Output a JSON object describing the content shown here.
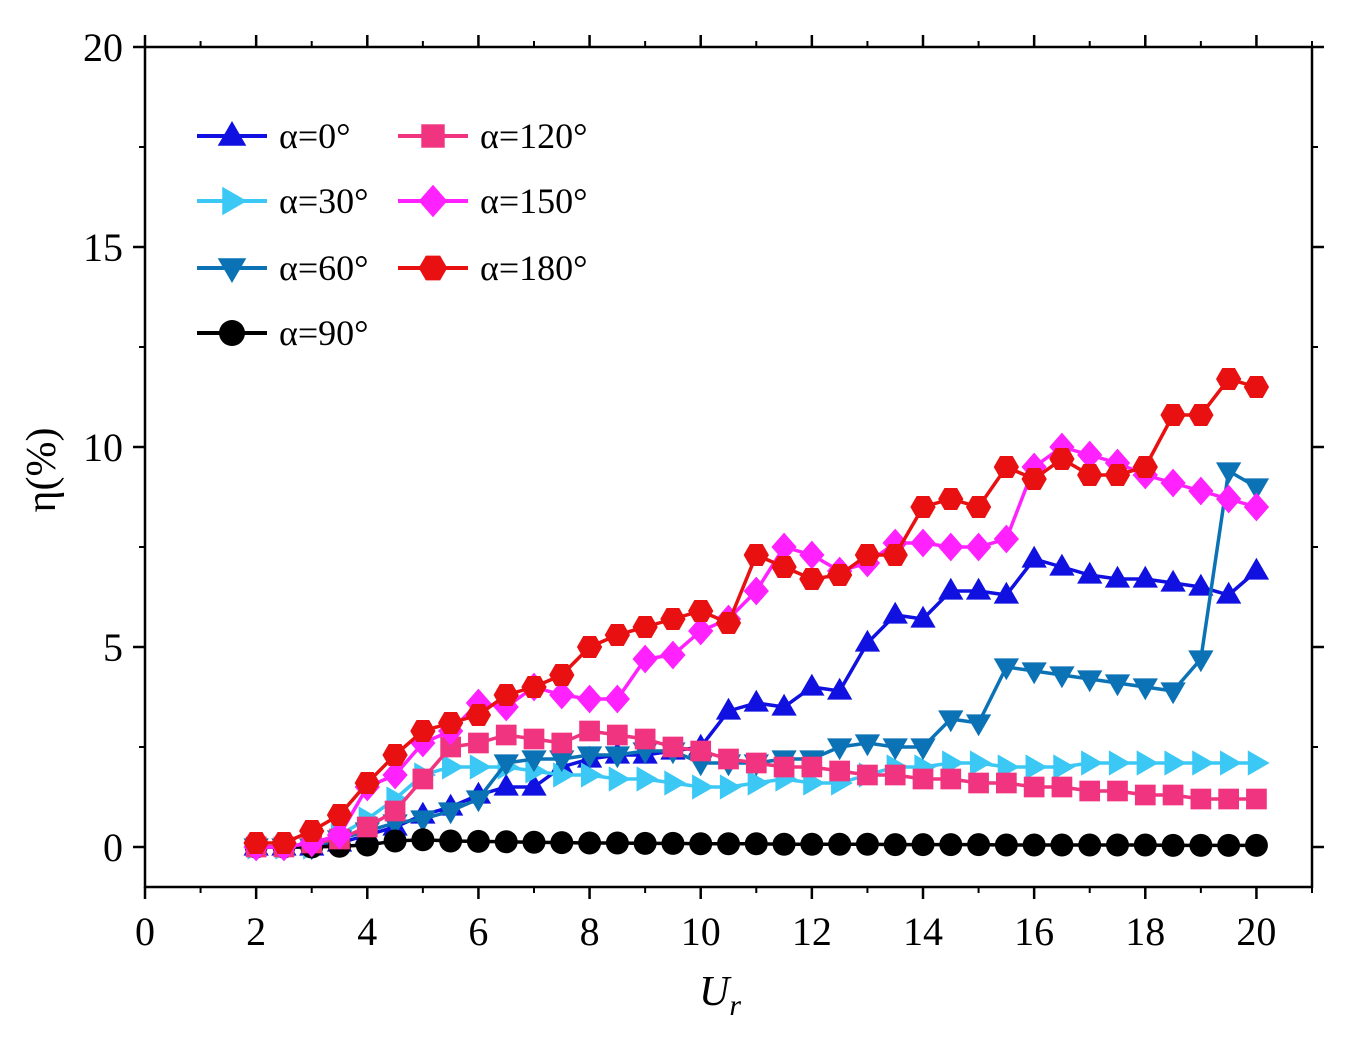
{
  "chart_data": {
    "type": "line",
    "xlabel": "U",
    "xlabel_sub": "r",
    "ylabel": "η(%)",
    "xlim": [
      0,
      21
    ],
    "ylim": [
      -1,
      20
    ],
    "xticks": [
      0,
      2,
      4,
      6,
      8,
      10,
      12,
      14,
      16,
      18,
      20
    ],
    "yticks": [
      0,
      5,
      10,
      15,
      20
    ],
    "legend": "top-left",
    "grid": false,
    "x": [
      2,
      2.5,
      3,
      3.5,
      4,
      4.5,
      5,
      5.5,
      6,
      6.5,
      7,
      7.5,
      8,
      8.5,
      9,
      9.5,
      10,
      10.5,
      11,
      11.5,
      12,
      12.5,
      13,
      13.5,
      14,
      14.5,
      15,
      15.5,
      16,
      16.5,
      17,
      17.5,
      18,
      18.5,
      19,
      19.5,
      20
    ],
    "series": [
      {
        "name": "α=0°",
        "color": "#1010e0",
        "marker": "triangle-up",
        "values": [
          0.0,
          0.0,
          0.0,
          0.1,
          0.3,
          0.5,
          0.8,
          1.0,
          1.3,
          1.5,
          1.5,
          2.0,
          2.2,
          2.3,
          2.3,
          2.4,
          2.5,
          3.4,
          3.6,
          3.5,
          4.0,
          3.9,
          5.1,
          5.8,
          5.7,
          6.4,
          6.4,
          6.3,
          7.2,
          7.0,
          6.8,
          6.7,
          6.7,
          6.6,
          6.5,
          6.3,
          6.9
        ]
      },
      {
        "name": "α=30°",
        "color": "#3cc8f5",
        "marker": "triangle-right",
        "values": [
          0.0,
          0.0,
          0.0,
          0.3,
          0.7,
          1.2,
          1.8,
          2.0,
          2.0,
          2.0,
          1.9,
          1.8,
          1.8,
          1.7,
          1.7,
          1.6,
          1.5,
          1.5,
          1.6,
          1.7,
          1.6,
          1.6,
          1.8,
          2.0,
          2.0,
          2.1,
          2.1,
          2.0,
          2.0,
          2.0,
          2.1,
          2.1,
          2.1,
          2.1,
          2.1,
          2.1,
          2.1
        ]
      },
      {
        "name": "α=60°",
        "color": "#0a72b5",
        "marker": "triangle-down",
        "values": [
          0.0,
          0.0,
          0.0,
          0.2,
          0.4,
          0.6,
          0.7,
          0.9,
          1.2,
          2.1,
          2.2,
          2.2,
          2.3,
          2.3,
          2.4,
          2.4,
          2.1,
          2.1,
          2.1,
          2.2,
          2.2,
          2.5,
          2.6,
          2.5,
          2.5,
          3.2,
          3.1,
          4.5,
          4.4,
          4.3,
          4.2,
          4.1,
          4.0,
          3.9,
          4.7,
          9.4,
          9.0
        ]
      },
      {
        "name": "α=90°",
        "color": "#000000",
        "marker": "circle",
        "values": [
          0.0,
          0.0,
          0.0,
          0.02,
          0.05,
          0.15,
          0.18,
          0.15,
          0.14,
          0.13,
          0.12,
          0.11,
          0.1,
          0.1,
          0.09,
          0.09,
          0.08,
          0.08,
          0.08,
          0.07,
          0.07,
          0.07,
          0.07,
          0.06,
          0.06,
          0.06,
          0.06,
          0.05,
          0.05,
          0.05,
          0.05,
          0.05,
          0.05,
          0.04,
          0.04,
          0.04,
          0.04
        ]
      },
      {
        "name": "α=120°",
        "color": "#f0347f",
        "marker": "square",
        "values": [
          0.0,
          0.0,
          0.1,
          0.2,
          0.5,
          0.9,
          1.7,
          2.5,
          2.6,
          2.8,
          2.7,
          2.6,
          2.9,
          2.8,
          2.7,
          2.5,
          2.4,
          2.2,
          2.1,
          2.0,
          2.0,
          1.9,
          1.8,
          1.8,
          1.7,
          1.7,
          1.6,
          1.6,
          1.5,
          1.5,
          1.4,
          1.4,
          1.3,
          1.3,
          1.2,
          1.2,
          1.2
        ]
      },
      {
        "name": "α=150°",
        "color": "#ff22ff",
        "marker": "diamond",
        "values": [
          0.0,
          0.0,
          0.1,
          0.3,
          1.5,
          1.8,
          2.6,
          2.9,
          3.6,
          3.5,
          4.0,
          3.8,
          3.7,
          3.7,
          4.7,
          4.8,
          5.4,
          5.7,
          6.4,
          7.5,
          7.3,
          6.9,
          7.1,
          7.6,
          7.6,
          7.5,
          7.5,
          7.7,
          9.5,
          10.0,
          9.8,
          9.6,
          9.3,
          9.1,
          8.9,
          8.7,
          8.5
        ]
      },
      {
        "name": "α=180°",
        "color": "#e81010",
        "marker": "hexagon",
        "values": [
          0.1,
          0.1,
          0.4,
          0.8,
          1.6,
          2.3,
          2.9,
          3.1,
          3.3,
          3.8,
          4.0,
          4.3,
          5.0,
          5.3,
          5.5,
          5.7,
          5.9,
          5.6,
          7.3,
          7.0,
          6.7,
          6.8,
          7.3,
          7.3,
          8.5,
          8.7,
          8.5,
          9.5,
          9.2,
          9.7,
          9.3,
          9.3,
          9.5,
          10.8,
          10.8,
          11.7,
          11.5
        ]
      }
    ]
  }
}
